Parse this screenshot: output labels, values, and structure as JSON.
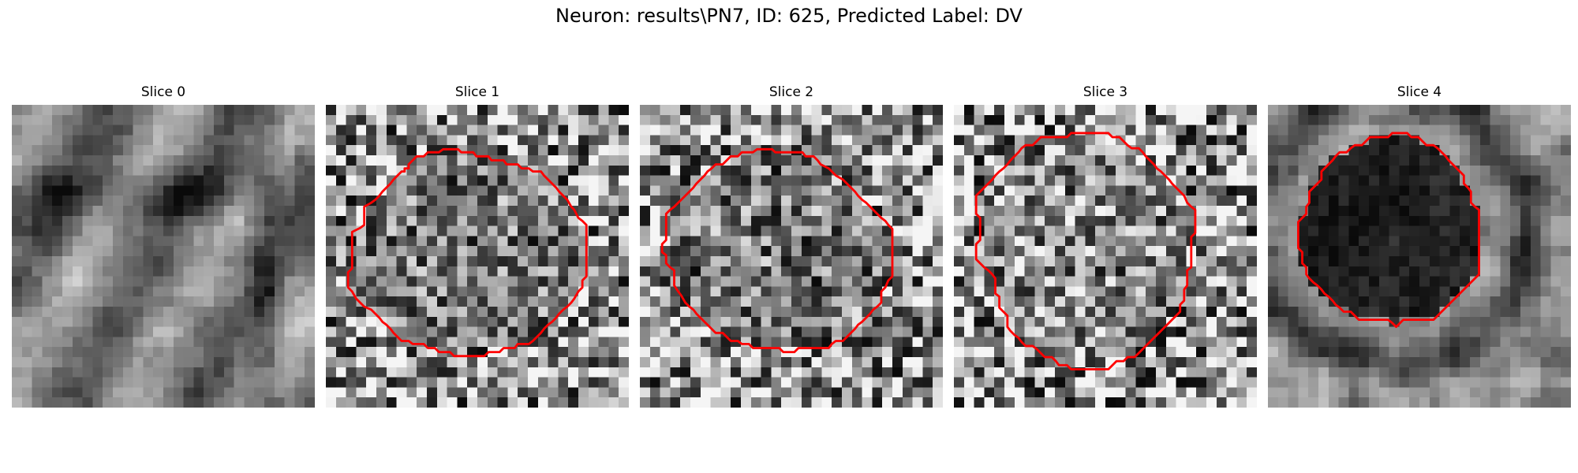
{
  "figure": {
    "title": "Neuron: results\\PN7, ID: 625, Predicted Label: DV"
  },
  "panels": [
    {
      "title": "Slice 0",
      "contour": []
    },
    {
      "title": "Slice 1",
      "contour": [
        [
          8.2,
          6.3
        ],
        [
          7.8,
          6.3
        ],
        [
          7.8,
          6.6
        ],
        [
          7.5,
          6.6
        ],
        [
          7.1,
          7.0
        ],
        [
          6.7,
          7.4
        ],
        [
          6.4,
          7.8
        ],
        [
          6.0,
          8.2
        ],
        [
          5.6,
          8.6
        ],
        [
          5.3,
          9.0
        ],
        [
          4.9,
          9.4
        ],
        [
          4.5,
          9.7
        ],
        [
          3.8,
          10.1
        ],
        [
          3.8,
          11.9
        ],
        [
          3.4,
          12.2
        ],
        [
          2.6,
          12.6
        ],
        [
          2.6,
          16.2
        ],
        [
          2.2,
          16.6
        ],
        [
          2.2,
          18.1
        ],
        [
          2.6,
          18.5
        ],
        [
          3.0,
          19.2
        ],
        [
          3.4,
          19.6
        ],
        [
          3.8,
          20.0
        ],
        [
          4.5,
          20.3
        ],
        [
          4.9,
          20.7
        ],
        [
          5.3,
          21.1
        ],
        [
          5.6,
          21.5
        ],
        [
          6.0,
          21.8
        ],
        [
          6.4,
          22.2
        ],
        [
          6.7,
          22.6
        ],
        [
          7.1,
          23.0
        ],
        [
          7.5,
          23.4
        ],
        [
          8.2,
          23.4
        ],
        [
          8.6,
          23.7
        ],
        [
          9.7,
          23.7
        ],
        [
          10.1,
          24.1
        ],
        [
          10.8,
          24.1
        ],
        [
          11.2,
          24.5
        ],
        [
          12.3,
          24.5
        ],
        [
          12.7,
          24.9
        ],
        [
          15.7,
          24.9
        ],
        [
          16.1,
          24.5
        ],
        [
          17.2,
          24.5
        ],
        [
          17.6,
          24.1
        ],
        [
          18.7,
          24.1
        ],
        [
          19.0,
          23.7
        ],
        [
          20.1,
          23.7
        ],
        [
          20.5,
          23.4
        ],
        [
          20.9,
          23.0
        ],
        [
          21.3,
          22.6
        ],
        [
          21.6,
          22.2
        ],
        [
          22.0,
          21.8
        ],
        [
          22.4,
          21.5
        ],
        [
          22.8,
          21.1
        ],
        [
          23.1,
          20.7
        ],
        [
          23.5,
          20.3
        ],
        [
          23.9,
          20.0
        ],
        [
          24.3,
          19.6
        ],
        [
          24.6,
          19.2
        ],
        [
          25.0,
          18.5
        ],
        [
          25.4,
          18.1
        ],
        [
          25.4,
          17.4
        ],
        [
          25.8,
          17.0
        ],
        [
          25.8,
          11.9
        ],
        [
          25.4,
          11.5
        ],
        [
          25.0,
          11.2
        ],
        [
          24.6,
          10.4
        ],
        [
          24.3,
          10.1
        ],
        [
          23.9,
          9.4
        ],
        [
          23.5,
          9.0
        ],
        [
          23.1,
          8.6
        ],
        [
          22.8,
          8.2
        ],
        [
          22.4,
          7.8
        ],
        [
          22.0,
          7.4
        ],
        [
          21.6,
          7.0
        ],
        [
          21.3,
          6.6
        ],
        [
          20.5,
          6.6
        ],
        [
          20.1,
          6.3
        ],
        [
          19.4,
          6.3
        ],
        [
          19.0,
          5.9
        ],
        [
          17.9,
          5.9
        ],
        [
          17.6,
          5.5
        ],
        [
          16.4,
          5.5
        ],
        [
          16.1,
          5.1
        ],
        [
          14.9,
          5.1
        ],
        [
          14.6,
          4.7
        ],
        [
          13.4,
          4.7
        ],
        [
          13.1,
          4.4
        ],
        [
          11.6,
          4.4
        ],
        [
          11.2,
          4.7
        ],
        [
          10.1,
          4.7
        ],
        [
          9.7,
          5.1
        ],
        [
          9.0,
          5.1
        ],
        [
          8.6,
          5.5
        ],
        [
          8.2,
          5.9
        ]
      ]
    },
    {
      "title": "Slice 2",
      "contour": [
        [
          10.1,
          4.7
        ],
        [
          9.7,
          5.1
        ],
        [
          9.0,
          5.1
        ],
        [
          8.6,
          5.5
        ],
        [
          8.2,
          5.9
        ],
        [
          7.5,
          5.9
        ],
        [
          7.1,
          6.3
        ],
        [
          6.7,
          6.6
        ],
        [
          6.4,
          7.0
        ],
        [
          6.0,
          7.4
        ],
        [
          5.6,
          7.8
        ],
        [
          5.3,
          8.2
        ],
        [
          4.9,
          8.6
        ],
        [
          4.5,
          9.0
        ],
        [
          4.1,
          9.4
        ],
        [
          3.8,
          9.7
        ],
        [
          3.4,
          10.1
        ],
        [
          3.0,
          10.4
        ],
        [
          2.6,
          10.8
        ],
        [
          2.6,
          13.4
        ],
        [
          2.2,
          13.8
        ],
        [
          2.2,
          14.6
        ],
        [
          2.6,
          14.9
        ],
        [
          2.6,
          15.7
        ],
        [
          3.0,
          16.1
        ],
        [
          3.4,
          16.4
        ],
        [
          3.4,
          17.9
        ],
        [
          3.8,
          18.5
        ],
        [
          4.1,
          18.9
        ],
        [
          4.5,
          19.6
        ],
        [
          4.9,
          20.0
        ],
        [
          5.3,
          20.3
        ],
        [
          5.6,
          20.7
        ],
        [
          6.0,
          21.1
        ],
        [
          6.4,
          21.5
        ],
        [
          6.7,
          21.8
        ],
        [
          7.1,
          22.2
        ],
        [
          7.5,
          22.6
        ],
        [
          8.2,
          22.6
        ],
        [
          8.6,
          23.0
        ],
        [
          9.0,
          23.4
        ],
        [
          9.7,
          23.4
        ],
        [
          10.1,
          23.7
        ],
        [
          10.8,
          23.7
        ],
        [
          11.2,
          24.1
        ],
        [
          13.8,
          24.1
        ],
        [
          14.2,
          24.5
        ],
        [
          15.3,
          24.5
        ],
        [
          15.7,
          24.1
        ],
        [
          18.7,
          24.1
        ],
        [
          19.0,
          23.7
        ],
        [
          19.4,
          23.4
        ],
        [
          20.1,
          23.4
        ],
        [
          20.5,
          23.0
        ],
        [
          20.9,
          22.6
        ],
        [
          21.3,
          22.2
        ],
        [
          21.6,
          21.8
        ],
        [
          22.0,
          21.5
        ],
        [
          22.4,
          21.1
        ],
        [
          22.8,
          20.7
        ],
        [
          23.1,
          20.3
        ],
        [
          23.5,
          20.0
        ],
        [
          23.9,
          19.6
        ],
        [
          23.9,
          18.5
        ],
        [
          24.3,
          18.1
        ],
        [
          24.6,
          17.4
        ],
        [
          25.0,
          17.0
        ],
        [
          25.0,
          12.3
        ],
        [
          24.6,
          11.9
        ],
        [
          24.3,
          11.5
        ],
        [
          23.9,
          11.2
        ],
        [
          23.5,
          10.8
        ],
        [
          23.1,
          10.4
        ],
        [
          22.8,
          10.1
        ],
        [
          22.4,
          9.7
        ],
        [
          22.0,
          9.4
        ],
        [
          21.6,
          9.0
        ],
        [
          21.3,
          8.6
        ],
        [
          20.9,
          8.2
        ],
        [
          20.5,
          7.8
        ],
        [
          20.1,
          7.4
        ],
        [
          19.4,
          7.0
        ],
        [
          19.0,
          6.6
        ],
        [
          18.7,
          6.3
        ],
        [
          17.9,
          5.9
        ],
        [
          17.6,
          5.5
        ],
        [
          17.2,
          5.1
        ],
        [
          16.4,
          5.1
        ],
        [
          16.1,
          4.7
        ],
        [
          13.4,
          4.7
        ],
        [
          13.1,
          4.4
        ],
        [
          11.6,
          4.4
        ],
        [
          11.2,
          4.7
        ]
      ]
    },
    {
      "title": "Slice 3",
      "contour": [
        [
          8.6,
          3.2
        ],
        [
          8.2,
          3.6
        ],
        [
          7.8,
          4.0
        ],
        [
          7.1,
          4.0
        ],
        [
          6.7,
          4.3
        ],
        [
          6.4,
          4.7
        ],
        [
          6.0,
          5.1
        ],
        [
          5.6,
          5.5
        ],
        [
          5.3,
          5.9
        ],
        [
          4.9,
          6.3
        ],
        [
          4.5,
          6.6
        ],
        [
          4.1,
          7.0
        ],
        [
          3.8,
          7.4
        ],
        [
          3.4,
          7.8
        ],
        [
          3.0,
          8.2
        ],
        [
          2.6,
          8.6
        ],
        [
          2.2,
          9.0
        ],
        [
          2.2,
          10.8
        ],
        [
          2.6,
          11.2
        ],
        [
          2.6,
          13.4
        ],
        [
          2.2,
          13.8
        ],
        [
          2.2,
          15.3
        ],
        [
          2.6,
          15.7
        ],
        [
          3.0,
          16.1
        ],
        [
          3.4,
          16.4
        ],
        [
          3.8,
          16.8
        ],
        [
          4.1,
          17.2
        ],
        [
          4.1,
          18.7
        ],
        [
          4.5,
          19.0
        ],
        [
          4.5,
          20.1
        ],
        [
          4.9,
          20.5
        ],
        [
          5.3,
          20.9
        ],
        [
          5.3,
          22.0
        ],
        [
          5.6,
          22.4
        ],
        [
          6.0,
          22.8
        ],
        [
          6.4,
          23.1
        ],
        [
          6.7,
          23.5
        ],
        [
          7.1,
          23.9
        ],
        [
          7.8,
          23.9
        ],
        [
          8.2,
          24.2
        ],
        [
          8.6,
          24.6
        ],
        [
          9.0,
          25.0
        ],
        [
          9.7,
          25.0
        ],
        [
          10.1,
          25.4
        ],
        [
          10.4,
          25.8
        ],
        [
          11.2,
          25.8
        ],
        [
          11.6,
          26.2
        ],
        [
          15.3,
          26.2
        ],
        [
          15.7,
          25.8
        ],
        [
          16.1,
          25.4
        ],
        [
          16.8,
          25.4
        ],
        [
          17.2,
          25.0
        ],
        [
          17.9,
          25.0
        ],
        [
          18.3,
          24.6
        ],
        [
          18.7,
          24.2
        ],
        [
          19.0,
          23.9
        ],
        [
          19.4,
          23.5
        ],
        [
          19.8,
          23.1
        ],
        [
          20.1,
          22.8
        ],
        [
          20.5,
          22.4
        ],
        [
          20.9,
          22.0
        ],
        [
          21.3,
          21.6
        ],
        [
          21.6,
          21.3
        ],
        [
          22.0,
          20.9
        ],
        [
          22.4,
          20.5
        ],
        [
          22.4,
          19.8
        ],
        [
          22.8,
          19.4
        ],
        [
          22.8,
          18.3
        ],
        [
          23.1,
          17.9
        ],
        [
          23.1,
          16.4
        ],
        [
          23.5,
          16.1
        ],
        [
          23.5,
          13.1
        ],
        [
          23.9,
          12.7
        ],
        [
          23.9,
          10.4
        ],
        [
          23.5,
          10.1
        ],
        [
          23.1,
          9.7
        ],
        [
          22.8,
          9.0
        ],
        [
          22.4,
          8.6
        ],
        [
          22.0,
          8.2
        ],
        [
          21.6,
          7.8
        ],
        [
          21.3,
          7.4
        ],
        [
          20.9,
          7.0
        ],
        [
          20.5,
          6.6
        ],
        [
          20.1,
          6.3
        ],
        [
          19.8,
          5.9
        ],
        [
          19.4,
          5.5
        ],
        [
          19.0,
          5.1
        ],
        [
          18.7,
          4.7
        ],
        [
          18.3,
          4.3
        ],
        [
          17.6,
          4.3
        ],
        [
          17.2,
          4.0
        ],
        [
          16.8,
          3.6
        ],
        [
          16.4,
          3.2
        ],
        [
          15.7,
          3.2
        ],
        [
          15.3,
          2.8
        ],
        [
          11.6,
          2.8
        ],
        [
          11.2,
          3.2
        ]
      ]
    },
    {
      "title": "Slice 4",
      "contour": [
        [
          9.7,
          3.6
        ],
        [
          9.3,
          4.0
        ],
        [
          8.6,
          4.0
        ],
        [
          8.2,
          4.3
        ],
        [
          7.8,
          4.7
        ],
        [
          7.1,
          4.7
        ],
        [
          6.7,
          5.1
        ],
        [
          6.4,
          5.5
        ],
        [
          6.0,
          5.9
        ],
        [
          5.6,
          6.3
        ],
        [
          5.3,
          6.6
        ],
        [
          5.3,
          7.4
        ],
        [
          4.9,
          7.8
        ],
        [
          4.5,
          8.2
        ],
        [
          4.1,
          8.6
        ],
        [
          4.1,
          9.7
        ],
        [
          3.8,
          10.1
        ],
        [
          3.8,
          10.8
        ],
        [
          3.4,
          11.2
        ],
        [
          3.0,
          11.6
        ],
        [
          3.0,
          14.2
        ],
        [
          3.4,
          14.6
        ],
        [
          3.4,
          15.7
        ],
        [
          3.8,
          16.1
        ],
        [
          3.8,
          16.8
        ],
        [
          4.1,
          17.2
        ],
        [
          4.5,
          17.6
        ],
        [
          4.9,
          17.9
        ],
        [
          5.3,
          18.3
        ],
        [
          5.6,
          18.7
        ],
        [
          6.0,
          19.0
        ],
        [
          6.4,
          19.4
        ],
        [
          6.7,
          19.8
        ],
        [
          7.1,
          20.1
        ],
        [
          7.5,
          20.5
        ],
        [
          8.2,
          20.5
        ],
        [
          8.6,
          20.9
        ],
        [
          9.0,
          21.3
        ],
        [
          11.9,
          21.3
        ],
        [
          12.3,
          21.6
        ],
        [
          12.7,
          22.0
        ],
        [
          13.1,
          21.6
        ],
        [
          13.4,
          21.3
        ],
        [
          16.4,
          21.3
        ],
        [
          16.8,
          20.9
        ],
        [
          17.2,
          20.5
        ],
        [
          17.6,
          20.1
        ],
        [
          17.9,
          19.8
        ],
        [
          18.3,
          19.4
        ],
        [
          18.7,
          19.0
        ],
        [
          19.0,
          18.7
        ],
        [
          19.4,
          18.3
        ],
        [
          19.8,
          17.9
        ],
        [
          20.1,
          17.6
        ],
        [
          20.5,
          17.2
        ],
        [
          20.9,
          16.8
        ],
        [
          20.9,
          10.4
        ],
        [
          20.5,
          10.1
        ],
        [
          20.1,
          9.7
        ],
        [
          20.1,
          8.6
        ],
        [
          19.8,
          8.2
        ],
        [
          19.4,
          7.8
        ],
        [
          19.4,
          7.0
        ],
        [
          19.0,
          6.6
        ],
        [
          18.7,
          6.3
        ],
        [
          18.3,
          5.9
        ],
        [
          17.9,
          5.5
        ],
        [
          17.6,
          5.1
        ],
        [
          17.2,
          4.7
        ],
        [
          16.8,
          4.3
        ],
        [
          16.4,
          4.0
        ],
        [
          15.7,
          4.0
        ],
        [
          15.3,
          3.6
        ],
        [
          14.9,
          3.2
        ],
        [
          14.2,
          3.2
        ],
        [
          13.8,
          2.8
        ],
        [
          12.3,
          2.8
        ],
        [
          11.9,
          3.2
        ],
        [
          10.1,
          3.2
        ]
      ]
    }
  ]
}
